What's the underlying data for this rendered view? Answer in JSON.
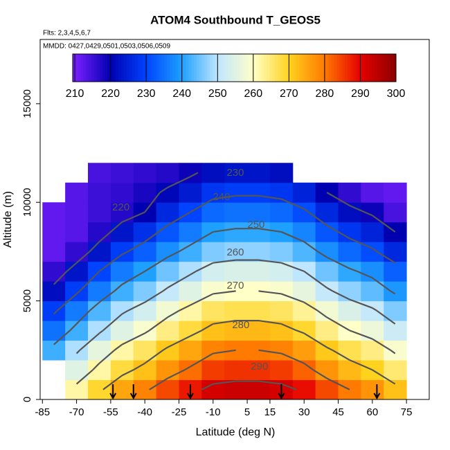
{
  "chart_data": {
    "type": "heatmap",
    "title": "ATOM4 Southbound T_GEOS5",
    "subtitle": "Flts: 2,3,4,5,6,7",
    "note": "MMDD: 0427,0429,0501,0503,0506,0509",
    "x_label": "Latitude (deg N)",
    "y_label": "Altitude (m)",
    "xlim": [
      -86,
      85
    ],
    "ylim": [
      0,
      18260
    ],
    "xticks": [
      -85,
      -70,
      -55,
      -40,
      -25,
      -10,
      5,
      15,
      30,
      45,
      60,
      75
    ],
    "yticks": [
      0,
      5000,
      10000,
      15000
    ],
    "x": [
      -80,
      -70,
      -60,
      -50,
      -40,
      -30,
      -20,
      -10,
      0,
      10,
      20,
      30,
      40,
      50,
      60,
      70
    ],
    "y": [
      500,
      1500,
      2500,
      3500,
      4500,
      5500,
      6500,
      7500,
      8500,
      9500,
      10500,
      11500
    ],
    "z": [
      [
        null,
        262,
        269,
        275,
        279,
        284,
        288,
        292,
        293,
        293,
        292,
        289,
        284,
        280,
        277,
        272
      ],
      [
        null,
        255,
        262,
        268,
        272,
        277,
        281,
        285,
        286,
        286,
        285,
        282,
        277,
        273,
        270,
        265
      ],
      [
        242,
        249,
        256,
        262,
        266,
        271,
        275,
        279,
        280,
        280,
        279,
        276,
        271,
        267,
        264,
        259
      ],
      [
        235,
        242,
        249,
        255,
        259,
        264,
        268,
        272,
        273,
        273,
        272,
        269,
        264,
        260,
        257,
        252
      ],
      [
        229,
        236,
        243,
        249,
        253,
        258,
        262,
        266,
        267,
        267,
        266,
        263,
        258,
        254,
        251,
        246
      ],
      [
        222,
        229,
        236,
        242,
        246,
        251,
        255,
        259,
        260,
        260,
        259,
        256,
        251,
        247,
        244,
        239
      ],
      [
        216,
        223,
        230,
        236,
        240,
        245,
        249,
        253,
        254,
        254,
        253,
        250,
        245,
        241,
        238,
        233
      ],
      [
        212,
        216,
        223,
        229,
        233,
        238,
        242,
        246,
        247,
        247,
        246,
        243,
        238,
        234,
        231,
        226
      ],
      [
        212,
        213,
        217,
        223,
        227,
        232,
        236,
        240,
        241,
        241,
        240,
        237,
        232,
        228,
        225,
        220
      ],
      [
        212,
        213,
        215,
        217,
        220,
        226,
        230,
        234,
        235,
        235,
        234,
        231,
        226,
        222,
        219,
        214
      ],
      [
        null,
        213,
        215,
        216,
        218,
        221,
        224,
        228,
        229,
        229,
        228,
        225,
        220,
        216,
        213,
        212
      ],
      [
        null,
        null,
        214,
        215,
        216,
        217,
        219,
        222,
        223,
        223,
        222,
        null,
        null,
        null,
        null,
        null
      ]
    ],
    "colorbar_lim": [
      209.4,
      300
    ],
    "colorbar_ticks": [
      210,
      220,
      230,
      240,
      250,
      260,
      270,
      280,
      290,
      300
    ],
    "colors": [
      "#7a1fff",
      "#0000b0",
      "#0044ff",
      "#1ea0ff",
      "#bfe6ff",
      "#ffffc8",
      "#ffd21e",
      "#ff7a00",
      "#e60000",
      "#8b0000"
    ],
    "contour_color": "#555555",
    "contour_levels": [
      220,
      230,
      240,
      250,
      260,
      270,
      280,
      290
    ],
    "annotations": [
      {
        "text": "220",
        "x": -50.5,
        "y": 9730
      },
      {
        "text": "230",
        "x": -0.2,
        "y": 11486
      },
      {
        "text": "240",
        "x": -6.3,
        "y": 10256
      },
      {
        "text": "250",
        "x": 8.9,
        "y": 8851
      },
      {
        "text": "260",
        "x": -0.2,
        "y": 7447
      },
      {
        "text": "270",
        "x": -0.2,
        "y": 5760
      },
      {
        "text": "280",
        "x": 2.2,
        "y": 3758
      },
      {
        "text": "290",
        "x": 10.4,
        "y": 1650
      }
    ],
    "markers": [
      -54,
      -45,
      -20,
      20,
      62
    ]
  }
}
